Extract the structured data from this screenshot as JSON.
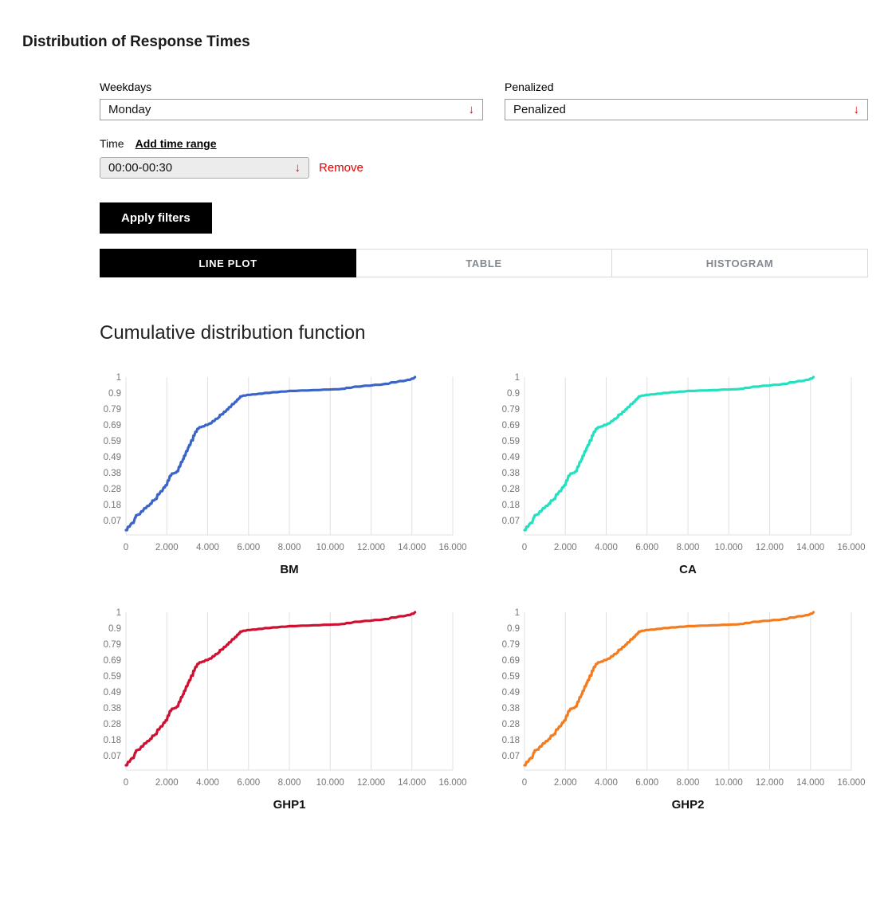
{
  "page": {
    "title": "Distribution of Response Times"
  },
  "filters": {
    "weekdays_label": "Weekdays",
    "weekdays_value": "Monday",
    "penalized_label": "Penalized",
    "penalized_value": "Penalized",
    "time_label": "Time",
    "add_time_range_label": "Add time range",
    "time_value": "00:00-00:30",
    "remove_label": "Remove",
    "apply_label": "Apply filters",
    "dropdown_arrow": "↓"
  },
  "tabs": [
    {
      "label": "LINE PLOT",
      "active": true
    },
    {
      "label": "TABLE",
      "active": false
    },
    {
      "label": "HISTOGRAM",
      "active": false
    }
  ],
  "section": {
    "heading": "Cumulative distribution function"
  },
  "colors": {
    "accent_red": "#e60000",
    "gridline": "#e0e0e0",
    "axis_text": "#757575",
    "tab_inactive_text": "#84898f",
    "series_bm": "#3b64c9",
    "series_ca": "#21e1c1",
    "series_ghp1": "#cf1030",
    "series_ghp2": "#f47c1f"
  },
  "chart_data": {
    "type": "line",
    "title": "Cumulative distribution function",
    "xlabel": "",
    "ylabel": "",
    "xlim": [
      0,
      16000
    ],
    "ylim": [
      0,
      1
    ],
    "grid": "vertical-only",
    "legend_position": "none",
    "x_tick_labels": [
      "0",
      "2.000",
      "4.000",
      "6.000",
      "8.000",
      "10.000",
      "12.000",
      "14.000",
      "16.000"
    ],
    "x_tick_values": [
      0,
      2000,
      4000,
      6000,
      8000,
      10000,
      12000,
      14000,
      16000
    ],
    "y_tick_labels": [
      "1",
      "0.9",
      "0.79",
      "0.69",
      "0.59",
      "0.49",
      "0.38",
      "0.28",
      "0.18",
      "0.07"
    ],
    "y_tick_values": [
      1,
      0.9,
      0.79,
      0.69,
      0.59,
      0.49,
      0.38,
      0.28,
      0.18,
      0.07
    ],
    "x": [
      0,
      100,
      250,
      300,
      450,
      500,
      600,
      750,
      900,
      1050,
      1200,
      1300,
      1450,
      1550,
      1700,
      1850,
      1950,
      2050,
      2150,
      2250,
      2400,
      2500,
      2600,
      2700,
      2800,
      2850,
      2950,
      3050,
      3100,
      3200,
      3250,
      3300,
      3400,
      3500,
      3600,
      3750,
      3900,
      4100,
      4250,
      4400,
      4550,
      4600,
      4700,
      4800,
      4950,
      5050,
      5200,
      5350,
      5450,
      5550,
      5600,
      5750,
      5950,
      6200,
      6500,
      6800,
      7200,
      7600,
      8000,
      8600,
      9200,
      9700,
      10200,
      10600,
      10800,
      11200,
      11700,
      12200,
      12700,
      13000,
      13400,
      13800,
      14000,
      14150
    ],
    "series": [
      {
        "name": "BM",
        "color": "#3b64c9",
        "values": [
          0.008,
          0.03,
          0.05,
          0.055,
          0.09,
          0.105,
          0.11,
          0.13,
          0.15,
          0.165,
          0.18,
          0.2,
          0.21,
          0.24,
          0.26,
          0.285,
          0.3,
          0.33,
          0.36,
          0.375,
          0.38,
          0.39,
          0.42,
          0.45,
          0.47,
          0.49,
          0.52,
          0.545,
          0.56,
          0.59,
          0.59,
          0.62,
          0.645,
          0.665,
          0.675,
          0.68,
          0.69,
          0.7,
          0.715,
          0.73,
          0.74,
          0.755,
          0.76,
          0.775,
          0.79,
          0.805,
          0.825,
          0.84,
          0.855,
          0.865,
          0.875,
          0.88,
          0.885,
          0.888,
          0.892,
          0.897,
          0.902,
          0.906,
          0.91,
          0.913,
          0.916,
          0.919,
          0.921,
          0.924,
          0.93,
          0.938,
          0.944,
          0.95,
          0.956,
          0.966,
          0.974,
          0.982,
          0.99,
          1.0
        ]
      },
      {
        "name": "CA",
        "color": "#21e1c1",
        "values": [
          0.008,
          0.03,
          0.05,
          0.055,
          0.09,
          0.105,
          0.11,
          0.13,
          0.15,
          0.165,
          0.18,
          0.2,
          0.21,
          0.24,
          0.26,
          0.285,
          0.3,
          0.33,
          0.36,
          0.375,
          0.38,
          0.39,
          0.42,
          0.45,
          0.47,
          0.49,
          0.52,
          0.545,
          0.56,
          0.59,
          0.59,
          0.62,
          0.645,
          0.665,
          0.675,
          0.68,
          0.69,
          0.7,
          0.715,
          0.73,
          0.74,
          0.755,
          0.76,
          0.775,
          0.79,
          0.805,
          0.825,
          0.84,
          0.855,
          0.865,
          0.875,
          0.88,
          0.885,
          0.888,
          0.892,
          0.897,
          0.902,
          0.906,
          0.91,
          0.913,
          0.916,
          0.919,
          0.921,
          0.924,
          0.93,
          0.938,
          0.944,
          0.95,
          0.956,
          0.966,
          0.974,
          0.982,
          0.99,
          1.0
        ]
      },
      {
        "name": "GHP1",
        "color": "#cf1030",
        "values": [
          0.008,
          0.03,
          0.05,
          0.055,
          0.09,
          0.105,
          0.11,
          0.13,
          0.15,
          0.165,
          0.18,
          0.2,
          0.21,
          0.24,
          0.26,
          0.285,
          0.3,
          0.33,
          0.36,
          0.375,
          0.38,
          0.39,
          0.42,
          0.45,
          0.47,
          0.49,
          0.52,
          0.545,
          0.56,
          0.59,
          0.59,
          0.62,
          0.645,
          0.665,
          0.675,
          0.68,
          0.69,
          0.7,
          0.715,
          0.73,
          0.74,
          0.755,
          0.76,
          0.775,
          0.79,
          0.805,
          0.825,
          0.84,
          0.855,
          0.865,
          0.875,
          0.88,
          0.885,
          0.888,
          0.892,
          0.897,
          0.902,
          0.906,
          0.91,
          0.913,
          0.916,
          0.919,
          0.921,
          0.924,
          0.93,
          0.938,
          0.944,
          0.95,
          0.956,
          0.966,
          0.974,
          0.982,
          0.99,
          1.0
        ]
      },
      {
        "name": "GHP2",
        "color": "#f47c1f",
        "values": [
          0.008,
          0.03,
          0.05,
          0.055,
          0.09,
          0.105,
          0.11,
          0.13,
          0.15,
          0.165,
          0.18,
          0.2,
          0.21,
          0.24,
          0.26,
          0.285,
          0.3,
          0.33,
          0.36,
          0.375,
          0.38,
          0.39,
          0.42,
          0.45,
          0.47,
          0.49,
          0.52,
          0.545,
          0.56,
          0.59,
          0.59,
          0.62,
          0.645,
          0.665,
          0.675,
          0.68,
          0.69,
          0.7,
          0.715,
          0.73,
          0.74,
          0.755,
          0.76,
          0.775,
          0.79,
          0.805,
          0.825,
          0.84,
          0.855,
          0.865,
          0.875,
          0.88,
          0.885,
          0.888,
          0.892,
          0.897,
          0.902,
          0.906,
          0.91,
          0.913,
          0.916,
          0.919,
          0.921,
          0.924,
          0.93,
          0.938,
          0.944,
          0.95,
          0.956,
          0.966,
          0.974,
          0.982,
          0.99,
          1.0
        ]
      }
    ]
  }
}
